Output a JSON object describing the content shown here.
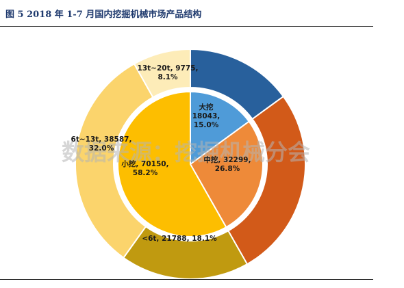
{
  "figure": {
    "title": "图 5   2018 年 1-7 月国内挖掘机械市场产品结构"
  },
  "watermark": "数据来源：挖掘机械分会",
  "colors": {
    "title": "#1f3a6e",
    "ring_13t_20t": "#fdecb8",
    "ring_6t_13t": "#fbd46c",
    "ring_lt6t": "#c09a10",
    "ring_mid": "#d25a19",
    "ring_large": "#28609c",
    "pie_large": "#4f9bd8",
    "pie_mid": "#ee8a39",
    "pie_small": "#fdbe00"
  },
  "chart_data": {
    "type": "pie",
    "style": "nested donut",
    "title": "",
    "inner": {
      "slices": [
        {
          "name": "大挖",
          "value": 18043,
          "pct": "15.0%",
          "color": "#4f9bd8"
        },
        {
          "name": "中挖",
          "value": 32299,
          "pct": "26.8%",
          "color": "#ee8a39"
        },
        {
          "name": "小挖",
          "value": 70150,
          "pct": "58.2%",
          "color": "#fdbe00"
        }
      ]
    },
    "outer": {
      "slices": [
        {
          "name": "大挖",
          "value": 18043,
          "color": "#28609c"
        },
        {
          "name": "中挖",
          "value": 32299,
          "color": "#d25a19"
        },
        {
          "name": "<6t",
          "value": 21788,
          "pct": "18.1%",
          "color": "#c09a10"
        },
        {
          "name": "6t~13t",
          "value": 38587,
          "pct": "32.0%",
          "color": "#fbd46c"
        },
        {
          "name": "13t~20t",
          "value": 9775,
          "pct": "8.1%",
          "color": "#fdecb8"
        }
      ]
    },
    "labels": [
      {
        "lines": [
          "大挖",
          "18043,",
          "15.0%"
        ]
      },
      {
        "lines": [
          "中挖, 32299,",
          "26.8%"
        ]
      },
      {
        "lines": [
          "小挖, 70150,",
          "58.2%"
        ]
      },
      {
        "lines": [
          "<6t, 21788, 18.1%"
        ]
      },
      {
        "lines": [
          "6t~13t, 38587,",
          "32.0%"
        ]
      },
      {
        "lines": [
          "13t~20t, 9775,",
          "8.1%"
        ]
      }
    ]
  }
}
